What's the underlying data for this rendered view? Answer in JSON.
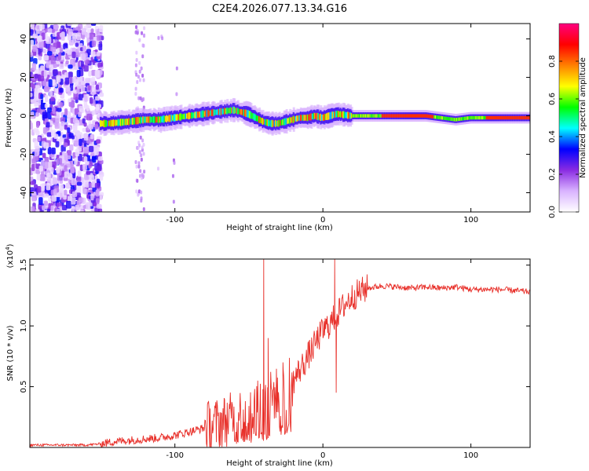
{
  "title": "C2E4.2026.077.13.34.G16",
  "chart_data": [
    {
      "type": "heatmap",
      "name": "spectrogram",
      "xlabel": "Height of straight line (km)",
      "ylabel": "Frequency (Hz)",
      "xlim": [
        -198,
        140
      ],
      "ylim": [
        -50,
        48
      ],
      "xticks": [
        -100,
        0,
        100
      ],
      "xtick_labels": [
        "-100",
        "0",
        "100"
      ],
      "yticks": [
        -40,
        -20,
        0,
        20,
        40
      ],
      "ytick_labels": [
        "-40",
        "-20",
        "0",
        "20",
        "40"
      ],
      "colorbar": {
        "label": "Normalized spectral amplitude",
        "range": [
          0,
          1
        ],
        "ticks": [
          0.0,
          0.2,
          0.4,
          0.6,
          0.8
        ],
        "tick_labels": [
          "0.0",
          "0.2",
          "0.4",
          "0.6",
          "0.8"
        ],
        "colors": [
          "#ffffff",
          "#d9b3ff",
          "#8a2be2",
          "#0000ff",
          "#00ffff",
          "#00ff00",
          "#ffff00",
          "#ff8000",
          "#ff0000",
          "#ff0080"
        ]
      },
      "ridge": {
        "x": [
          -145,
          -130,
          -120,
          -110,
          -100,
          -90,
          -80,
          -70,
          -60,
          -55,
          -50,
          -45,
          -40,
          -35,
          -30,
          -25,
          -20,
          -15,
          -10,
          -5,
          0,
          5,
          10,
          20,
          30,
          40,
          50,
          60,
          70,
          80,
          90,
          100,
          110,
          120,
          130,
          140
        ],
        "freq": [
          -4,
          -3,
          -2,
          -2,
          -1,
          0,
          1,
          2,
          3,
          2,
          1,
          -1,
          -3,
          -4,
          -4,
          -3,
          -2,
          -1,
          -1,
          0,
          -1,
          0,
          1,
          0,
          0,
          0,
          0,
          0,
          0,
          -1,
          -2,
          -1,
          -1,
          -1,
          -1,
          -1
        ]
      }
    },
    {
      "type": "line",
      "name": "snr",
      "xlabel": "Height of straight line (km)",
      "ylabel": "SNR (10 * v/v)",
      "scale_label_base": "(x10",
      "scale_label_exp": "4",
      "scale_label_end": ")",
      "xlim": [
        -198,
        140
      ],
      "ylim": [
        0,
        1.55
      ],
      "xticks": [
        -100,
        0,
        100
      ],
      "xtick_labels": [
        "-100",
        "0",
        "100"
      ],
      "yticks": [
        0.5,
        1.0,
        1.5
      ],
      "ytick_labels": [
        "0.5",
        "1.0",
        "1.5"
      ],
      "color": "#e8302a",
      "series": {
        "x": [
          -198,
          -160,
          -150,
          -140,
          -130,
          -120,
          -110,
          -100,
          -90,
          -80,
          -70,
          -60,
          -50,
          -45,
          -40,
          -35,
          -30,
          -25,
          -20,
          -15,
          -10,
          -5,
          0,
          5,
          10,
          15,
          20,
          25,
          30,
          35,
          40,
          50,
          60,
          70,
          80,
          90,
          100,
          110,
          120,
          130,
          140
        ],
        "y": [
          0.02,
          0.02,
          0.03,
          0.05,
          0.06,
          0.07,
          0.08,
          0.1,
          0.13,
          0.16,
          0.2,
          0.25,
          0.3,
          0.34,
          0.38,
          0.42,
          0.45,
          0.5,
          0.55,
          0.65,
          0.75,
          0.86,
          0.96,
          1.02,
          1.1,
          1.18,
          1.24,
          1.28,
          1.31,
          1.32,
          1.33,
          1.32,
          1.31,
          1.32,
          1.31,
          1.32,
          1.3,
          1.3,
          1.3,
          1.29,
          1.28
        ]
      },
      "spikes": [
        {
          "x": -40,
          "y": 1.55
        },
        {
          "x": -37,
          "y": 0.9
        },
        {
          "x": -27,
          "y": 0.7
        },
        {
          "x": 8,
          "y": 1.55
        },
        {
          "x": 9,
          "y": 0.45
        }
      ]
    }
  ]
}
